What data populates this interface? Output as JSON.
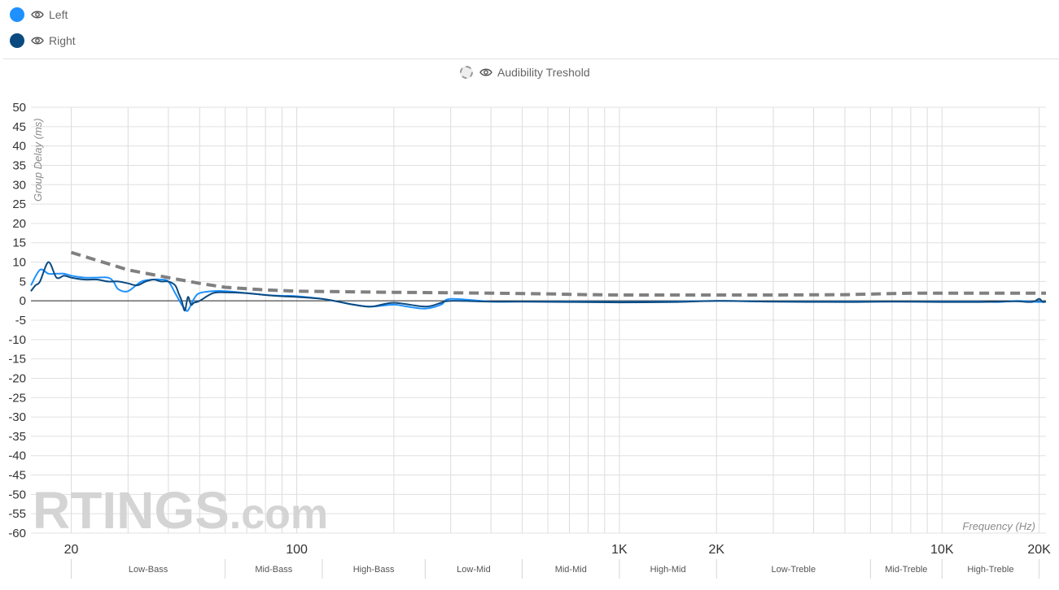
{
  "legend": {
    "items": [
      {
        "label": "Left",
        "color": "#1e90ff",
        "icon": "eye-icon"
      },
      {
        "label": "Right",
        "color": "#0b4a80",
        "icon": "eye-icon"
      }
    ],
    "reference": {
      "label": "Audibility Treshold",
      "icon": "eye-icon"
    }
  },
  "watermark": {
    "brand": "RTINGS",
    "suffix": ".com"
  },
  "chart_data": {
    "type": "line",
    "xlabel": "Frequency (Hz)",
    "ylabel": "Group Delay (ms)",
    "xscale": "log",
    "xlim": [
      15,
      21000
    ],
    "ylim": [
      -60,
      50
    ],
    "yticks": [
      50,
      45,
      40,
      35,
      30,
      25,
      20,
      15,
      10,
      5,
      0,
      -5,
      -10,
      -15,
      -20,
      -25,
      -30,
      -35,
      -40,
      -45,
      -50,
      -55,
      -60
    ],
    "xtick_labels": [
      {
        "value": 20,
        "label": "20"
      },
      {
        "value": 100,
        "label": "100"
      },
      {
        "value": 1000,
        "label": "1K"
      },
      {
        "value": 2000,
        "label": "2K"
      },
      {
        "value": 10000,
        "label": "10K"
      },
      {
        "value": 20000,
        "label": "20K"
      }
    ],
    "bands": [
      {
        "label": "Low-Bass",
        "from": 20,
        "to": 60
      },
      {
        "label": "Mid-Bass",
        "from": 60,
        "to": 120
      },
      {
        "label": "High-Bass",
        "from": 120,
        "to": 250
      },
      {
        "label": "Low-Mid",
        "from": 250,
        "to": 500
      },
      {
        "label": "Mid-Mid",
        "from": 500,
        "to": 1000
      },
      {
        "label": "High-Mid",
        "from": 1000,
        "to": 2000
      },
      {
        "label": "Low-Treble",
        "from": 2000,
        "to": 6000
      },
      {
        "label": "Mid-Treble",
        "from": 6000,
        "to": 10000
      },
      {
        "label": "High-Treble",
        "from": 10000,
        "to": 20000
      }
    ],
    "grid": true,
    "legend_position": "top-left",
    "series": [
      {
        "name": "Left",
        "color": "#1e90ff",
        "x": [
          15,
          16,
          17,
          18,
          19,
          20,
          22,
          24,
          26,
          27,
          28,
          30,
          33,
          36,
          38,
          40,
          42,
          44,
          45,
          46,
          48,
          50,
          55,
          60,
          70,
          80,
          90,
          100,
          120,
          140,
          150,
          170,
          200,
          220,
          250,
          280,
          300,
          400,
          500,
          700,
          1000,
          1500,
          2000,
          3000,
          5000,
          7000,
          10000,
          13000,
          15000,
          17000,
          19000,
          20000,
          21000
        ],
        "y": [
          4,
          8,
          7,
          7,
          7,
          6.5,
          6,
          6,
          6,
          5,
          3,
          2.5,
          5,
          5.5,
          5.5,
          5,
          2,
          -1,
          -2,
          -2.5,
          0.5,
          2,
          2.5,
          2.5,
          2,
          1.5,
          1.3,
          1.2,
          0.5,
          -0.5,
          -1,
          -1.5,
          -1,
          -1.5,
          -2,
          -1,
          0.5,
          -0.2,
          -0.2,
          -0.2,
          -0.3,
          -0.2,
          0,
          -0.2,
          -0.2,
          -0.2,
          -0.2,
          -0.2,
          -0.3,
          0,
          -0.2,
          -0.3,
          -0.2
        ]
      },
      {
        "name": "Right",
        "color": "#0b4a80",
        "x": [
          15,
          15.5,
          16,
          17,
          18,
          19,
          20,
          22,
          24,
          26,
          28,
          30,
          32,
          34,
          36,
          38,
          40,
          42,
          43,
          44,
          45,
          46,
          47,
          48,
          50,
          55,
          60,
          70,
          80,
          90,
          100,
          120,
          140,
          150,
          170,
          200,
          250,
          280,
          300,
          400,
          500,
          700,
          1000,
          1500,
          2000,
          3000,
          5000,
          7000,
          10000,
          13000,
          15000,
          17000,
          19000,
          20000,
          20500,
          21000
        ],
        "y": [
          2.5,
          4,
          5,
          10,
          6,
          6.5,
          6,
          5.5,
          5.5,
          5,
          5,
          4.5,
          4,
          5,
          5.5,
          5,
          5,
          4,
          2,
          0,
          -2.5,
          1,
          -1,
          -0.5,
          0,
          2,
          2.2,
          2,
          1.5,
          1.2,
          1,
          0.5,
          -0.5,
          -1,
          -1.5,
          -0.5,
          -1.5,
          -0.5,
          0,
          -0.2,
          -0.2,
          -0.3,
          -0.4,
          -0.3,
          0,
          -0.2,
          -0.3,
          -0.2,
          -0.3,
          -0.3,
          -0.2,
          -0.1,
          -0.3,
          0.5,
          -0.3,
          -0.2
        ]
      },
      {
        "name": "Audibility Treshold",
        "color": "#808080",
        "dashed": true,
        "x": [
          20,
          30,
          40,
          50,
          60,
          80,
          100,
          200,
          400,
          600,
          800,
          1000,
          2000,
          3000,
          5000,
          8000,
          10000,
          20000,
          21000
        ],
        "y": [
          12.5,
          8,
          6,
          4.5,
          3.5,
          2.8,
          2.5,
          2.2,
          2,
          1.8,
          1.6,
          1.5,
          1.5,
          1.5,
          1.6,
          2,
          2,
          2,
          2
        ]
      }
    ]
  }
}
